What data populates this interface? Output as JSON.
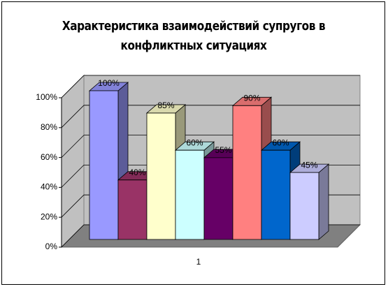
{
  "chart_data": {
    "type": "bar3d",
    "title": "Характеристика взаимодействий супругов в",
    "subtitle": "конфликтных ситуациях",
    "categories": [
      "1"
    ],
    "series": [
      {
        "color": "#9999ff",
        "values": [
          100
        ],
        "value_labels": [
          "100%"
        ]
      },
      {
        "color": "#993366",
        "values": [
          40
        ],
        "value_labels": [
          "40%"
        ]
      },
      {
        "color": "#ffffcc",
        "values": [
          85
        ],
        "value_labels": [
          "85%"
        ]
      },
      {
        "color": "#ccffff",
        "values": [
          60
        ],
        "value_labels": [
          "60%"
        ]
      },
      {
        "color": "#660066",
        "values": [
          55
        ],
        "value_labels": [
          "55%"
        ]
      },
      {
        "color": "#ff8080",
        "values": [
          90
        ],
        "value_labels": [
          "90%"
        ]
      },
      {
        "color": "#0066cc",
        "values": [
          60
        ],
        "value_labels": [
          "60%"
        ]
      },
      {
        "color": "#ccccff",
        "values": [
          45
        ],
        "value_labels": [
          "45%"
        ]
      }
    ],
    "ylim": [
      0,
      100
    ],
    "yticks": [
      {
        "value": 0,
        "label": "0%"
      },
      {
        "value": 20,
        "label": "20%"
      },
      {
        "value": 40,
        "label": "40%"
      },
      {
        "value": 60,
        "label": "60%"
      },
      {
        "value": 80,
        "label": "80%"
      },
      {
        "value": 100,
        "label": "100%"
      }
    ],
    "grid": true
  }
}
